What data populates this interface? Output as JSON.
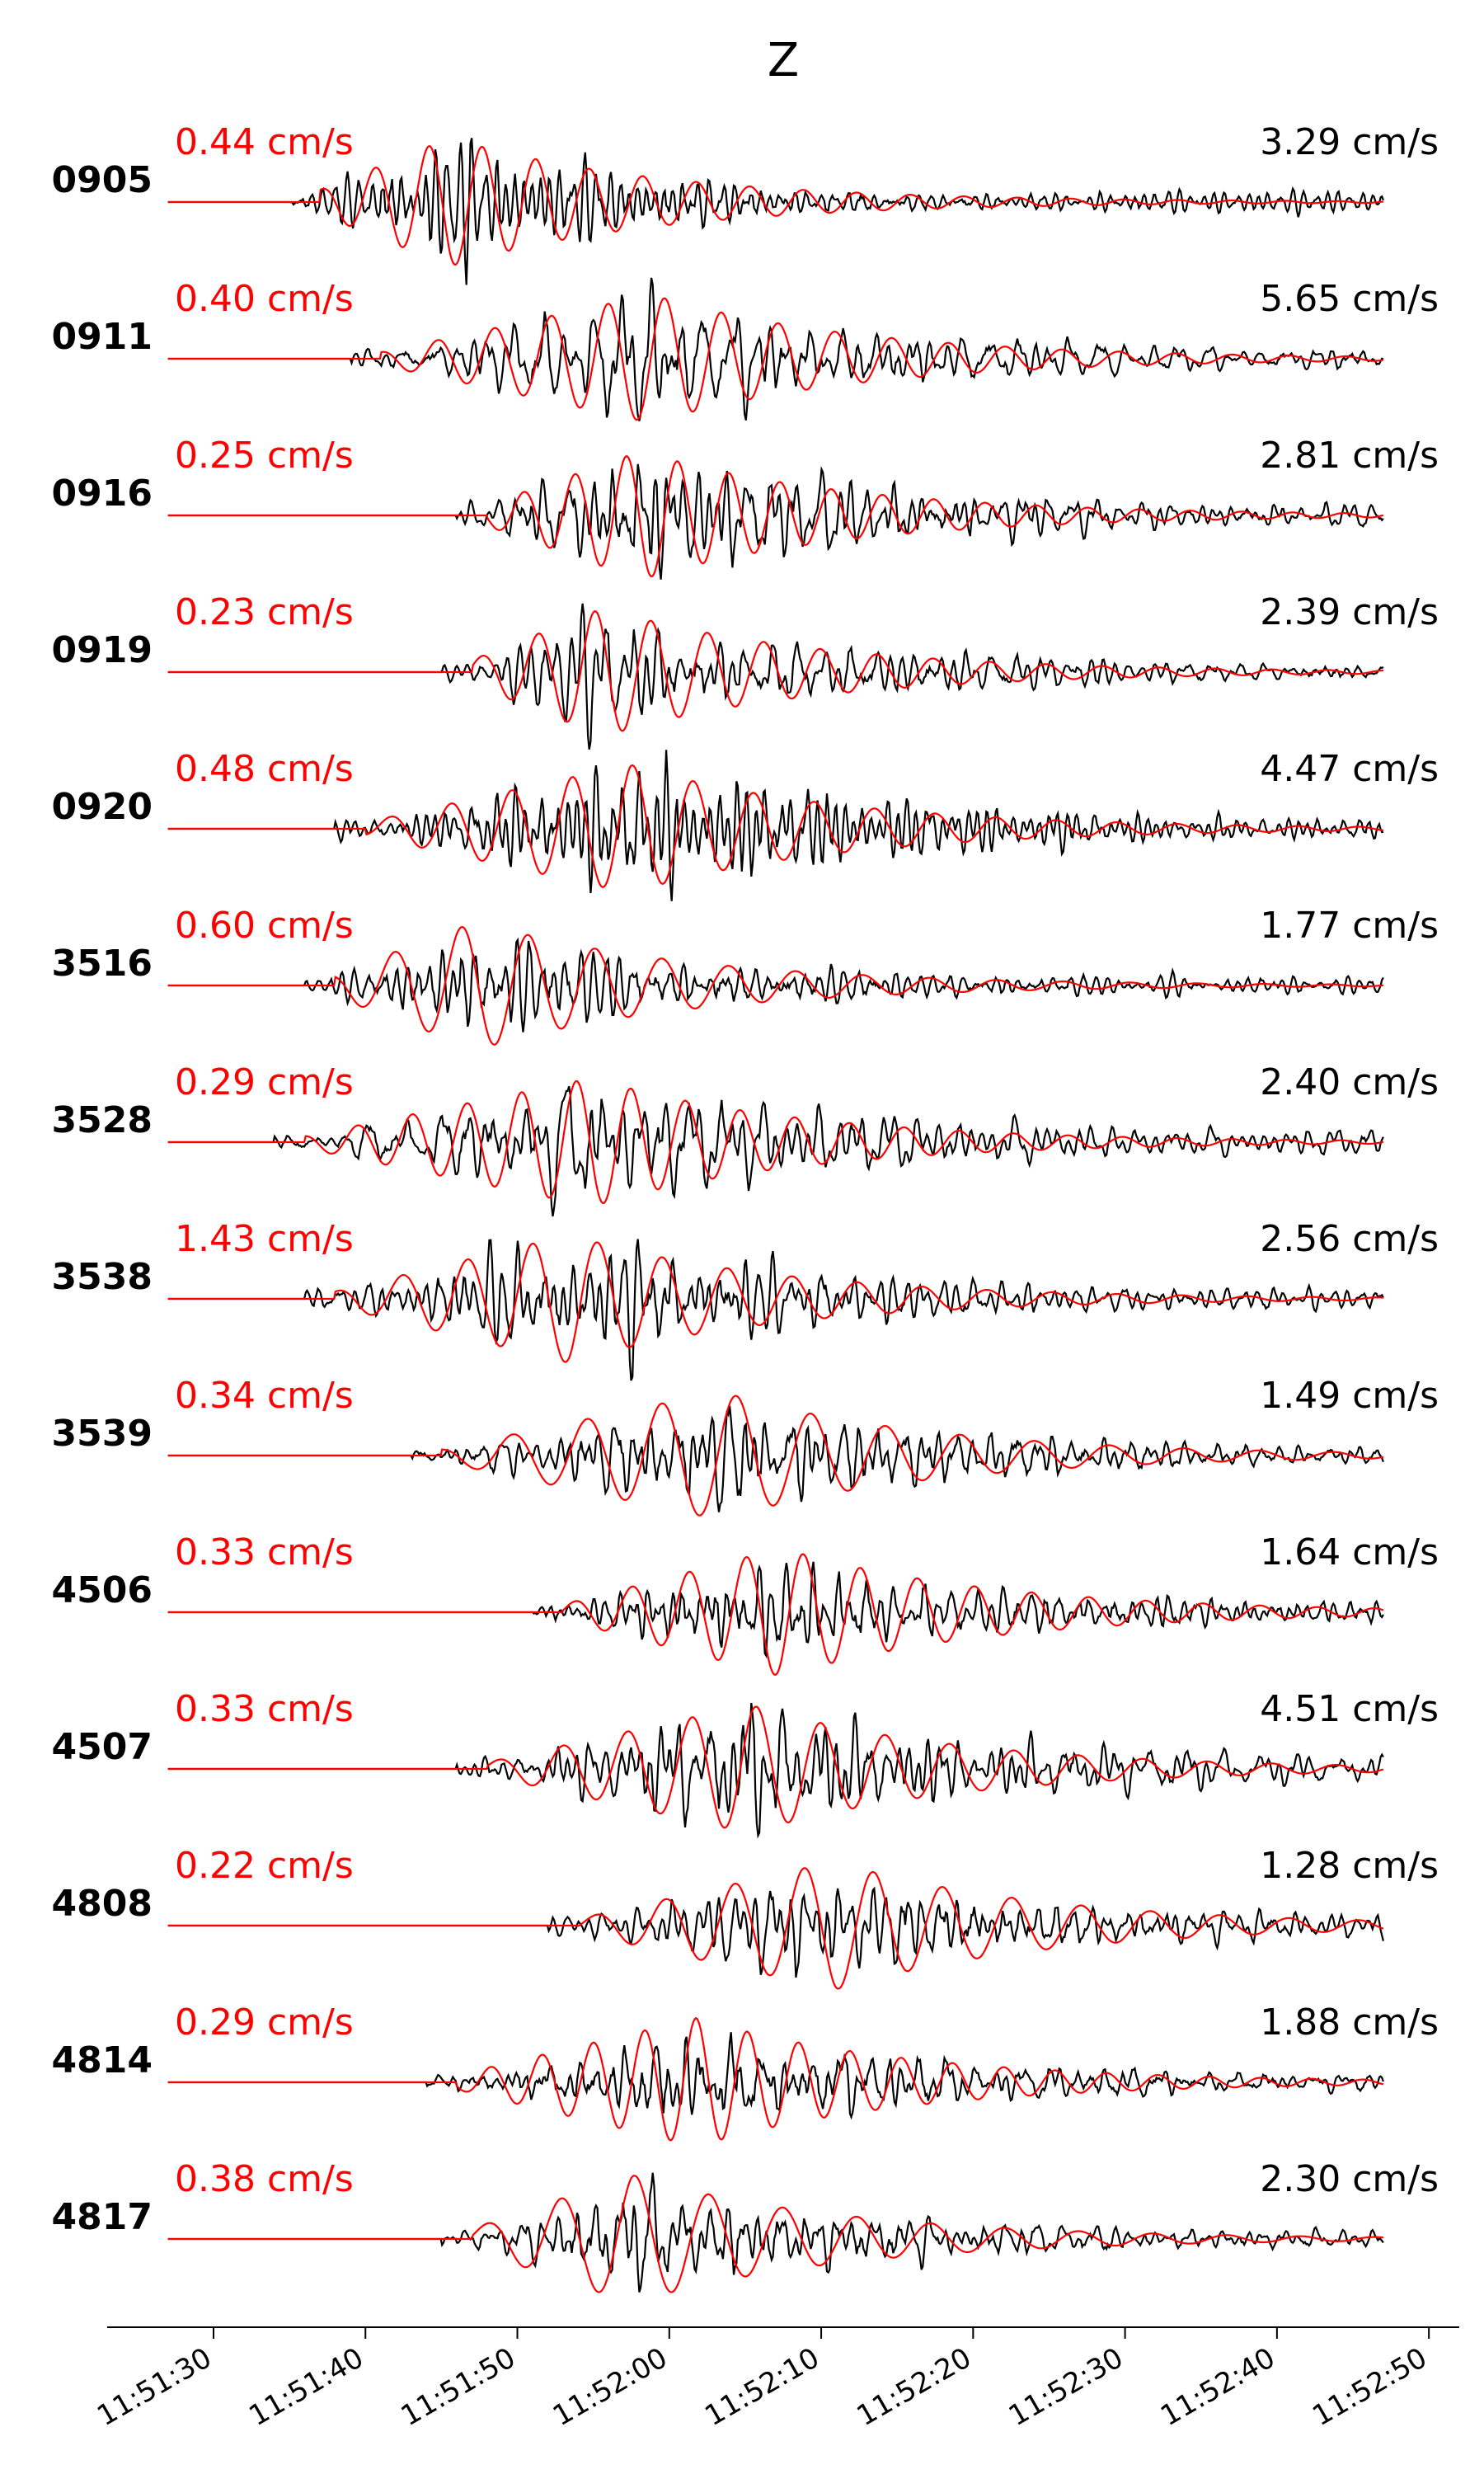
{
  "chart_data": {
    "type": "line",
    "title": "Z",
    "xlabel": "",
    "ylabel": "",
    "x_axis": {
      "type": "time",
      "ticks": [
        "11:51:30",
        "11:51:40",
        "11:51:50",
        "11:52:00",
        "11:52:10",
        "11:52:20",
        "11:52:30",
        "11:52:40",
        "11:52:50"
      ],
      "xlim": [
        "11:51:23",
        "11:52:52"
      ]
    },
    "series_colors": {
      "observed": "#000000",
      "synthetic": "#ff0000"
    },
    "traces": [
      {
        "station": "0905",
        "synthetic_peak": "0.44 cm/s",
        "observed_peak": "3.29 cm/s",
        "onset": "11:51:35"
      },
      {
        "station": "0911",
        "synthetic_peak": "0.40 cm/s",
        "observed_peak": "5.65 cm/s",
        "onset": "11:51:39"
      },
      {
        "station": "0916",
        "synthetic_peak": "0.25 cm/s",
        "observed_peak": "2.81 cm/s",
        "onset": "11:51:46"
      },
      {
        "station": "0919",
        "synthetic_peak": "0.23 cm/s",
        "observed_peak": "2.39 cm/s",
        "onset": "11:51:45"
      },
      {
        "station": "0920",
        "synthetic_peak": "0.48 cm/s",
        "observed_peak": "4.47 cm/s",
        "onset": "11:51:38"
      },
      {
        "station": "3516",
        "synthetic_peak": "0.60 cm/s",
        "observed_peak": "1.77 cm/s",
        "onset": "11:51:36"
      },
      {
        "station": "3528",
        "synthetic_peak": "0.29 cm/s",
        "observed_peak": "2.40 cm/s",
        "onset": "11:51:34"
      },
      {
        "station": "3538",
        "synthetic_peak": "1.43 cm/s",
        "observed_peak": "2.56 cm/s",
        "onset": "11:51:36"
      },
      {
        "station": "3539",
        "synthetic_peak": "0.34 cm/s",
        "observed_peak": "1.49 cm/s",
        "onset": "11:51:43"
      },
      {
        "station": "4506",
        "synthetic_peak": "0.33 cm/s",
        "observed_peak": "1.64 cm/s",
        "onset": "11:51:51"
      },
      {
        "station": "4507",
        "synthetic_peak": "0.33 cm/s",
        "observed_peak": "4.51 cm/s",
        "onset": "11:51:46"
      },
      {
        "station": "4808",
        "synthetic_peak": "0.22 cm/s",
        "observed_peak": "1.28 cm/s",
        "onset": "11:51:52"
      },
      {
        "station": "4814",
        "synthetic_peak": "0.29 cm/s",
        "observed_peak": "1.88 cm/s",
        "onset": "11:51:44"
      },
      {
        "station": "4817",
        "synthetic_peak": "0.38 cm/s",
        "observed_peak": "2.30 cm/s",
        "onset": "11:51:45"
      }
    ]
  }
}
